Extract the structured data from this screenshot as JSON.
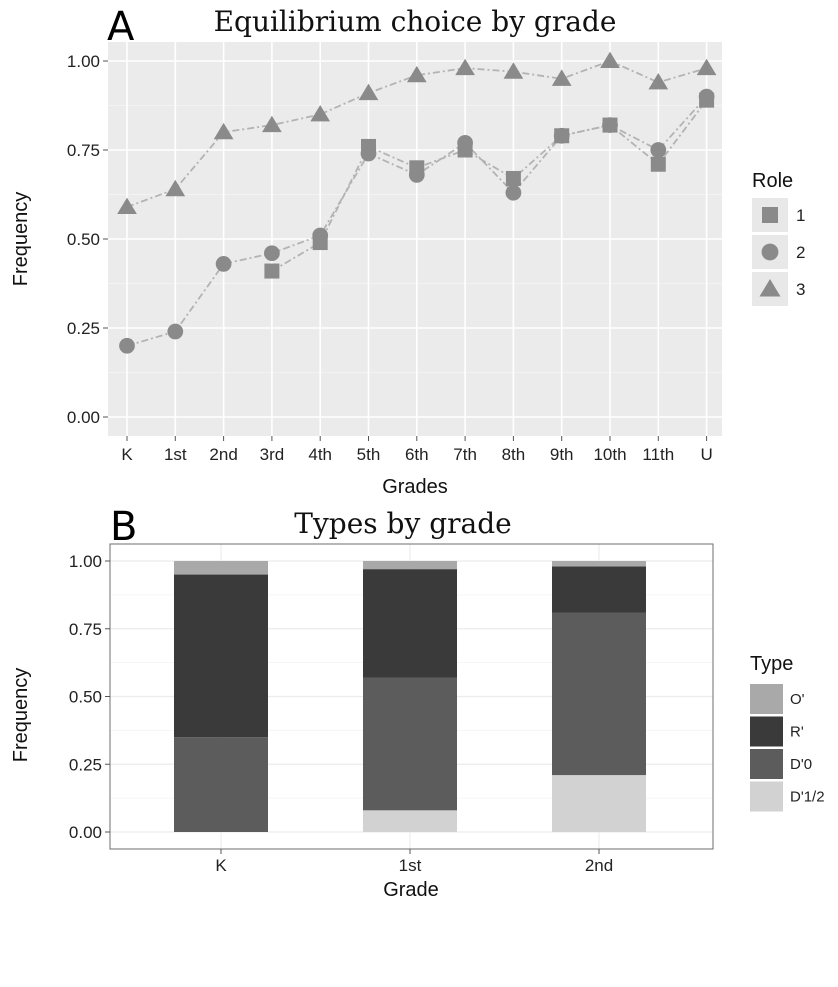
{
  "chart_data": [
    {
      "panel": "A",
      "type": "line",
      "title": "Equilibrium choice by grade",
      "xlabel": "Grades",
      "ylabel": "Frequency",
      "categories": [
        "K",
        "1st",
        "2nd",
        "3rd",
        "4th",
        "5th",
        "6th",
        "7th",
        "8th",
        "9th",
        "10th",
        "11th",
        "U"
      ],
      "ylim": [
        0,
        1
      ],
      "yticks": [
        "0.00",
        "0.25",
        "0.50",
        "0.75",
        "1.00"
      ],
      "legend": {
        "title": "Role",
        "position": "right"
      },
      "series": [
        {
          "name": "1",
          "marker": "square",
          "values": [
            null,
            null,
            null,
            0.41,
            0.49,
            0.76,
            0.7,
            0.75,
            0.67,
            0.79,
            0.82,
            0.71,
            0.89
          ]
        },
        {
          "name": "2",
          "marker": "circle",
          "values": [
            0.2,
            0.24,
            0.43,
            0.46,
            0.51,
            0.74,
            0.68,
            0.77,
            0.63,
            0.79,
            0.82,
            0.75,
            0.9
          ]
        },
        {
          "name": "3",
          "marker": "triangle",
          "values": [
            0.59,
            0.64,
            0.8,
            0.82,
            0.85,
            0.91,
            0.96,
            0.98,
            0.97,
            0.95,
            1.0,
            0.94,
            0.98
          ]
        }
      ],
      "colors": {
        "markers": "#8a8a8a",
        "line": "#b3b3b3",
        "panel_bg": "#ebebeb",
        "grid": "#ffffff"
      }
    },
    {
      "panel": "B",
      "type": "bar",
      "stacked": true,
      "title": "Types by grade",
      "xlabel": "Grade",
      "ylabel": "Frequency",
      "categories": [
        "K",
        "1st",
        "2nd"
      ],
      "ylim": [
        0,
        1
      ],
      "yticks": [
        "0.00",
        "0.25",
        "0.50",
        "0.75",
        "1.00"
      ],
      "legend": {
        "title": "Type",
        "position": "right"
      },
      "series": [
        {
          "name": "D'1/2",
          "color": "#d2d2d2",
          "values": [
            0.0,
            0.08,
            0.21
          ]
        },
        {
          "name": "D'0",
          "color": "#5c5c5c",
          "values": [
            0.35,
            0.49,
            0.6
          ]
        },
        {
          "name": "R'",
          "color": "#3a3a3a",
          "values": [
            0.6,
            0.4,
            0.17
          ]
        },
        {
          "name": "O'",
          "color": "#a9a9a9",
          "values": [
            0.05,
            0.03,
            0.02
          ]
        }
      ],
      "legend_order": [
        "O'",
        "R'",
        "D'0",
        "D'1/2"
      ]
    }
  ],
  "panels": {
    "A": {
      "letter": "A"
    },
    "B": {
      "letter": "B"
    }
  }
}
